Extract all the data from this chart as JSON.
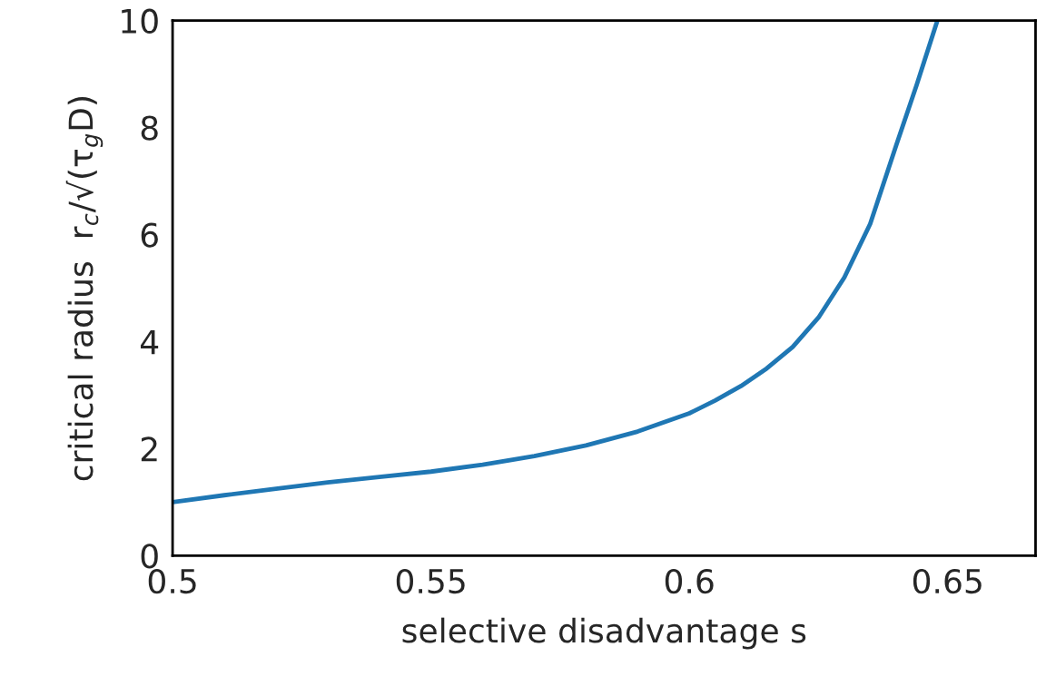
{
  "chart_data": {
    "type": "line",
    "xlabel": "selective disadvantage s",
    "ylabel": "critical radius  r$_{c}$/√(τ$_{g}$D)",
    "x": [
      0.5,
      0.51,
      0.52,
      0.53,
      0.54,
      0.55,
      0.56,
      0.57,
      0.58,
      0.59,
      0.6,
      0.605,
      0.61,
      0.615,
      0.62,
      0.625,
      0.63,
      0.635,
      0.64,
      0.644,
      0.648
    ],
    "series": [
      {
        "color": "#1f77b4",
        "values": [
          1.0,
          1.13,
          1.25,
          1.37,
          1.47,
          1.57,
          1.7,
          1.86,
          2.06,
          2.32,
          2.66,
          2.9,
          3.17,
          3.5,
          3.9,
          4.45,
          5.2,
          6.2,
          7.66,
          8.8,
          10.0
        ]
      }
    ],
    "xlim": [
      0.5,
      0.667
    ],
    "ylim": [
      0,
      10
    ],
    "xticks": [
      0.5,
      0.55,
      0.6,
      0.65
    ],
    "yticks": [
      0,
      2,
      4,
      6,
      8,
      10
    ],
    "marker": "none",
    "line_style": "solid"
  }
}
